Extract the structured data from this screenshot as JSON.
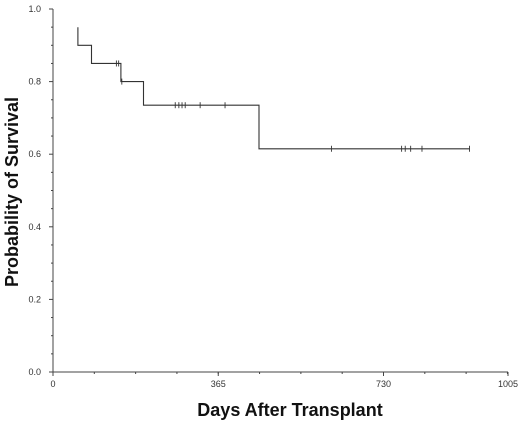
{
  "chart_data": {
    "type": "line",
    "subtype": "kaplan-meier-step",
    "xlabel": "Days After Transplant",
    "ylabel": "Probability of Survival",
    "xlim": [
      0,
      1005
    ],
    "ylim": [
      0.0,
      1.0
    ],
    "x_ticks": [
      0,
      365,
      730,
      1005
    ],
    "x_tick_labels": [
      "0",
      "365",
      "730",
      "1005"
    ],
    "y_ticks": [
      0.0,
      0.2,
      0.4,
      0.6,
      0.8,
      1.0
    ],
    "y_tick_labels": [
      "0.0",
      "0.2",
      "0.4",
      "0.6",
      "0.8",
      "1.0"
    ],
    "grid": false,
    "series": [
      {
        "color": "#333333",
        "steps": [
          {
            "x": 55,
            "y": 0.95
          },
          {
            "x": 55,
            "y": 0.9
          },
          {
            "x": 85,
            "y": 0.9
          },
          {
            "x": 85,
            "y": 0.85
          },
          {
            "x": 150,
            "y": 0.85
          },
          {
            "x": 150,
            "y": 0.8
          },
          {
            "x": 155,
            "y": 0.8
          },
          {
            "x": 200,
            "y": 0.8
          },
          {
            "x": 200,
            "y": 0.735
          },
          {
            "x": 455,
            "y": 0.735
          },
          {
            "x": 455,
            "y": 0.615
          },
          {
            "x": 920,
            "y": 0.615
          }
        ],
        "censored": [
          {
            "x": 140,
            "y": 0.85
          },
          {
            "x": 145,
            "y": 0.85
          },
          {
            "x": 152,
            "y": 0.8
          },
          {
            "x": 270,
            "y": 0.735
          },
          {
            "x": 278,
            "y": 0.735
          },
          {
            "x": 285,
            "y": 0.735
          },
          {
            "x": 292,
            "y": 0.735
          },
          {
            "x": 325,
            "y": 0.735
          },
          {
            "x": 380,
            "y": 0.735
          },
          {
            "x": 615,
            "y": 0.615
          },
          {
            "x": 770,
            "y": 0.615
          },
          {
            "x": 778,
            "y": 0.615
          },
          {
            "x": 790,
            "y": 0.615
          },
          {
            "x": 815,
            "y": 0.615
          },
          {
            "x": 920,
            "y": 0.615
          }
        ]
      }
    ]
  }
}
